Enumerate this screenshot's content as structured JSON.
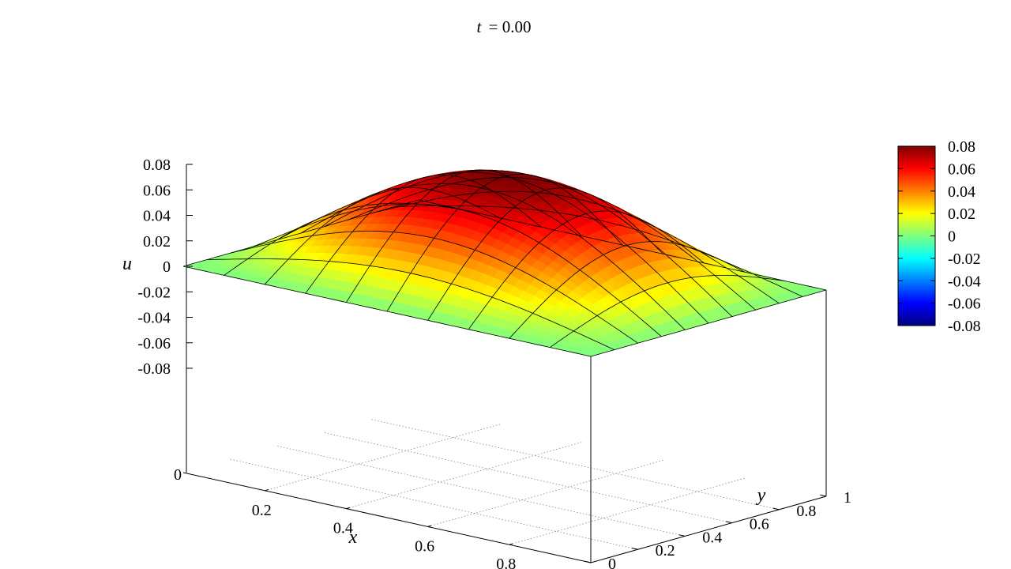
{
  "chart_data": {
    "type": "surface",
    "title_var": "t",
    "title_value": "= 0.00",
    "xlabel": "x",
    "ylabel": "y",
    "zlabel": "u",
    "xlim": [
      0,
      1
    ],
    "ylim": [
      0,
      1
    ],
    "zlim": [
      -0.08,
      0.08
    ],
    "x_ticks": [
      "0",
      "0.2",
      "0.4",
      "0.6",
      "0.8"
    ],
    "x_tick_values": [
      0,
      0.2,
      0.4,
      0.6,
      0.8
    ],
    "y_ticks": [
      "0",
      "0.2",
      "0.4",
      "0.6",
      "0.8",
      "1"
    ],
    "y_tick_values": [
      0,
      0.2,
      0.4,
      0.6,
      0.8,
      1
    ],
    "z_ticks": [
      "0.08",
      "0.06",
      "0.04",
      "0.02",
      "0",
      "-0.02",
      "-0.04",
      "-0.06",
      "-0.08"
    ],
    "z_tick_values": [
      0.08,
      0.06,
      0.04,
      0.02,
      0,
      -0.02,
      -0.04,
      -0.06,
      -0.08
    ],
    "colorbar_ticks": [
      "0.08",
      "0.06",
      "0.04",
      "0.02",
      "0",
      "-0.02",
      "-0.04",
      "-0.06",
      "-0.08"
    ],
    "colorbar_values": [
      0.08,
      0.06,
      0.04,
      0.02,
      0,
      -0.02,
      -0.04,
      -0.06,
      -0.08
    ],
    "colormap": [
      "#00007f",
      "#0000ff",
      "#007fff",
      "#00ffff",
      "#7fff7f",
      "#ffff00",
      "#ff7f00",
      "#ff0000",
      "#7f0000"
    ],
    "surface_function": "u(x,y) = 0.08 * sin(pi x) * sin(pi y)",
    "amplitude": 0.08,
    "mesh_lines": 10,
    "grid": true
  }
}
